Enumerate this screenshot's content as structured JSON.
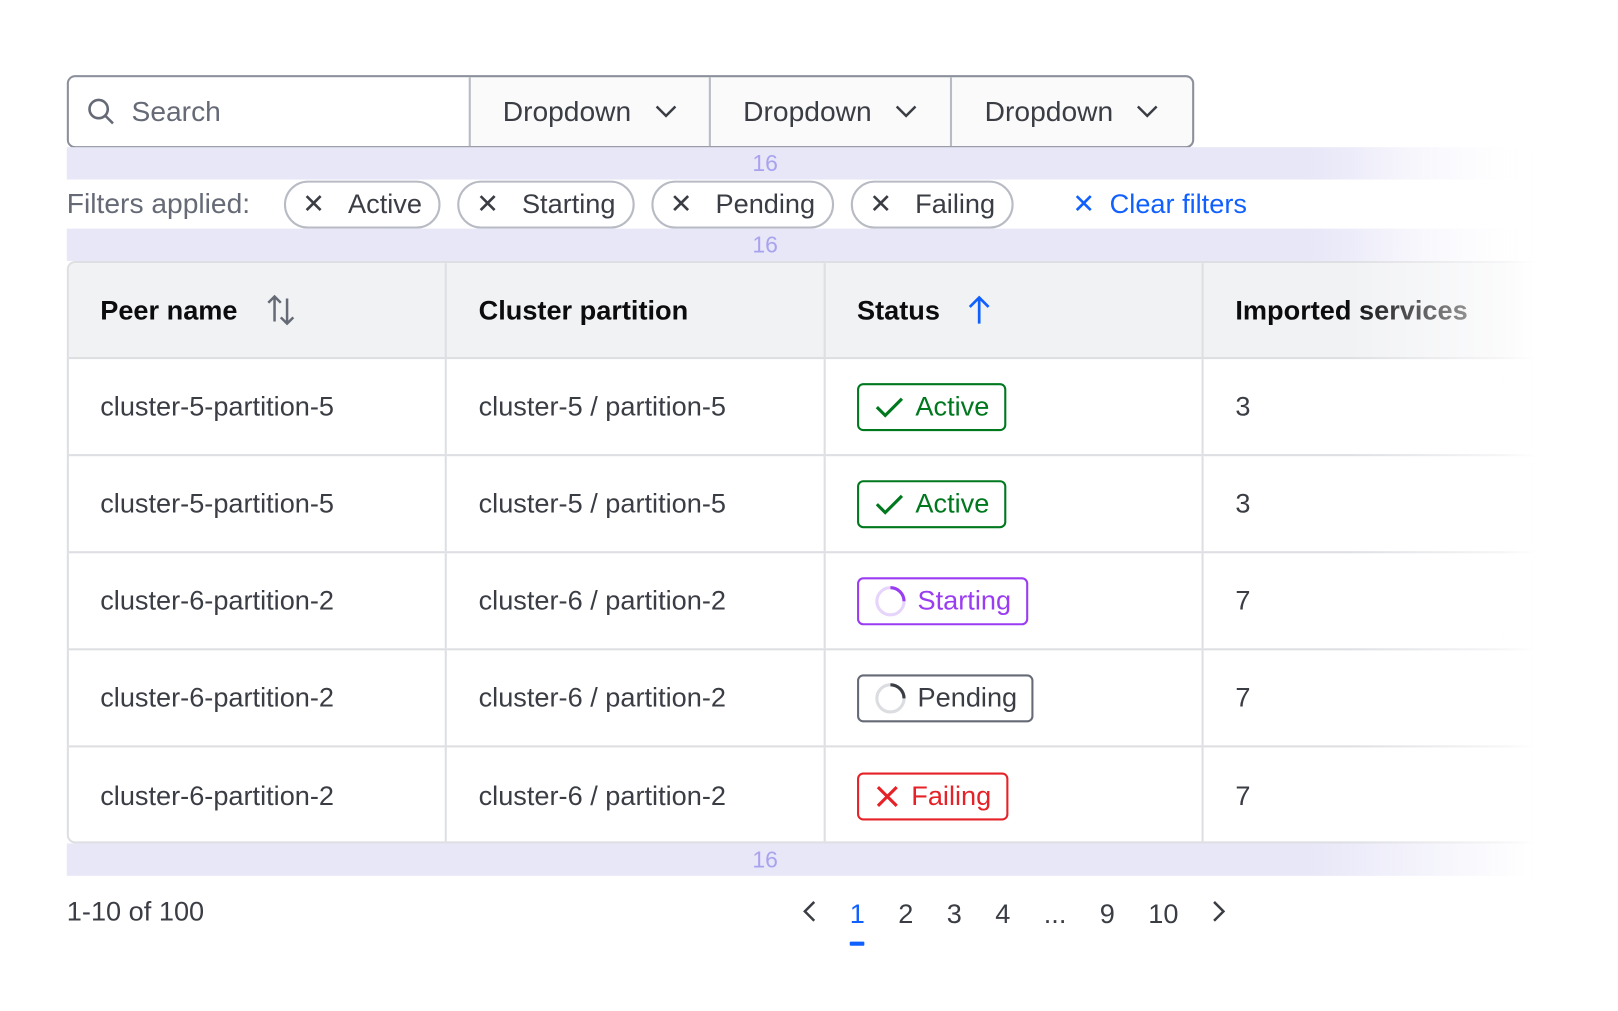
{
  "toolbar": {
    "search_placeholder": "Search",
    "dropdowns": [
      {
        "label": "Dropdown"
      },
      {
        "label": "Dropdown"
      },
      {
        "label": "Dropdown"
      }
    ]
  },
  "spacing_annotations": [
    "16",
    "16",
    "16"
  ],
  "filters": {
    "label": "Filters applied:",
    "chips": [
      "Active",
      "Starting",
      "Pending",
      "Failing"
    ],
    "clear_label": "Clear filters"
  },
  "table": {
    "columns": [
      "Peer name",
      "Cluster partition",
      "Status",
      "Imported services"
    ],
    "sort": {
      "peer_name": "unsorted",
      "status": "ascending"
    },
    "rows": [
      {
        "peer": "cluster-5-partition-5",
        "partition": "cluster-5 / partition-5",
        "status": "Active",
        "status_kind": "active",
        "imported": "3"
      },
      {
        "peer": "cluster-5-partition-5",
        "partition": "cluster-5 / partition-5",
        "status": "Active",
        "status_kind": "active",
        "imported": "3"
      },
      {
        "peer": "cluster-6-partition-2",
        "partition": "cluster-6 / partition-2",
        "status": "Starting",
        "status_kind": "starting",
        "imported": "7"
      },
      {
        "peer": "cluster-6-partition-2",
        "partition": "cluster-6 / partition-2",
        "status": "Pending",
        "status_kind": "pending",
        "imported": "7"
      },
      {
        "peer": "cluster-6-partition-2",
        "partition": "cluster-6 / partition-2",
        "status": "Failing",
        "status_kind": "failing",
        "imported": "7"
      }
    ]
  },
  "status_colors": {
    "active": "#00781e",
    "starting": "#9a3cf2",
    "pending": "#656a76",
    "failing": "#e52228"
  },
  "accent": "#1060ff",
  "pagination": {
    "info": "1-10 of 100",
    "pages": [
      "1",
      "2",
      "3",
      "4",
      "...",
      "9",
      "10"
    ],
    "current": "1"
  }
}
